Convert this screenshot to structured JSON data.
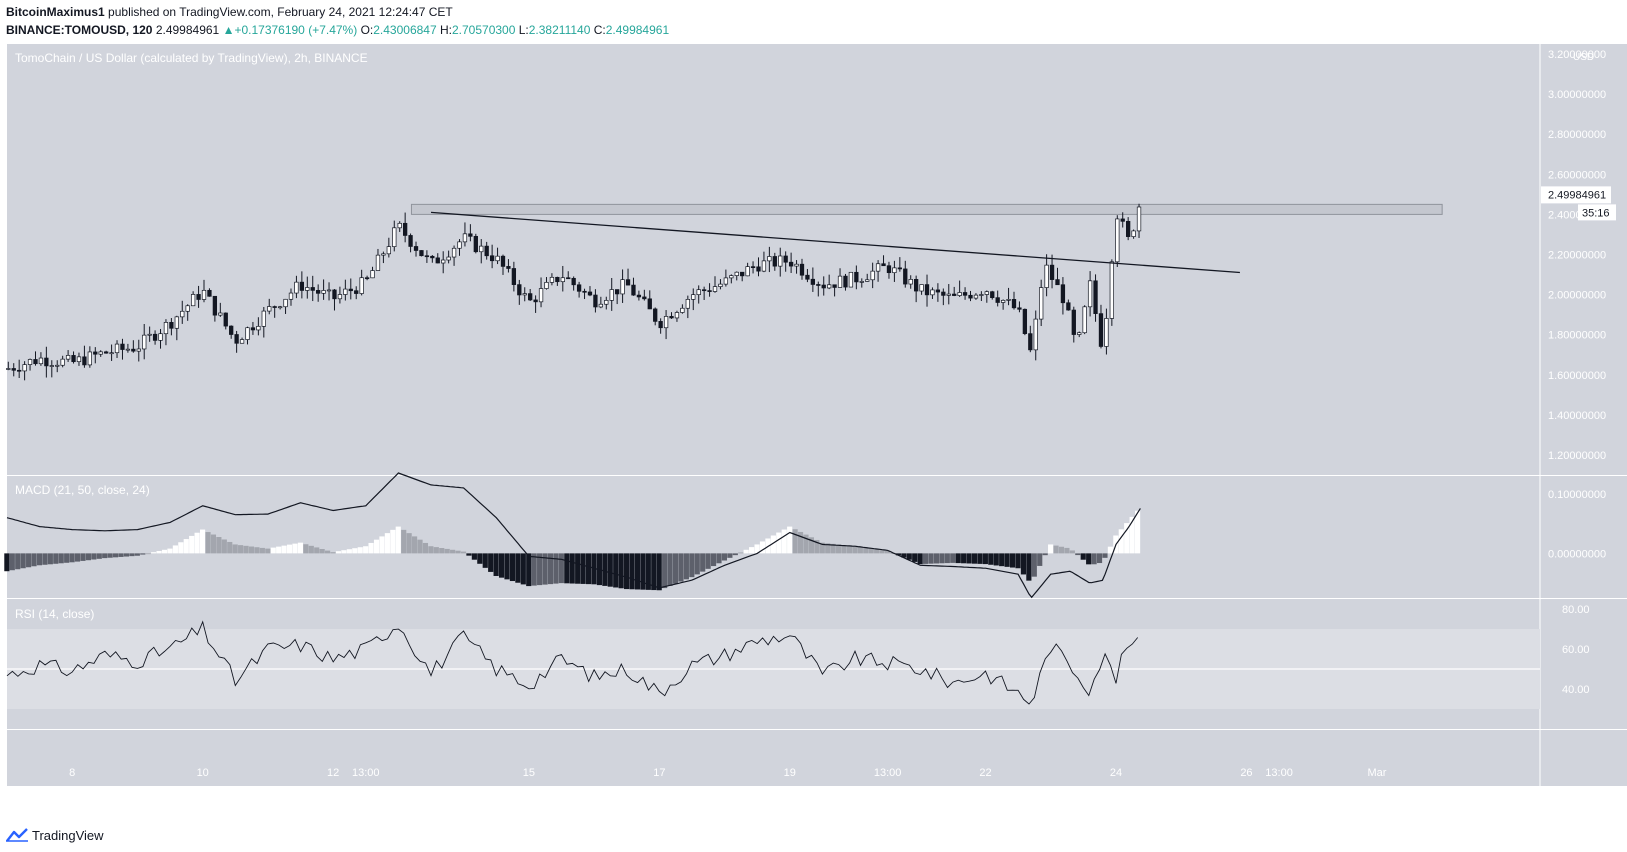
{
  "header": {
    "author": "BitcoinMaximus1",
    "published_text": "published on TradingView.com, February 24, 2021 12:24:47 CET",
    "symbol": "BINANCE:TOMOUSD, 120",
    "last": "2.49984961",
    "change": "+0.17376190 (+7.47%)",
    "open_label": "O:",
    "open": "2.43006847",
    "high_label": "H:",
    "high": "2.70570300",
    "low_label": "L:",
    "low": "2.38211140",
    "close_label": "C:",
    "close": "2.49984961"
  },
  "footer": {
    "brand": "TradingView"
  },
  "colors": {
    "pane_bg": "#d1d4dc",
    "up": "#ffffff",
    "down": "#131722",
    "accent": "#26a69a",
    "rsi_band": "#dcdee4"
  },
  "chart_data": [
    {
      "type": "candlestick",
      "title": "TomoChain / US Dollar (calculated by TradingView), 2h, BINANCE",
      "currency_label": "USD",
      "ylim": [
        1.1,
        3.25
      ],
      "yticks": [
        "3.20000000",
        "3.00000000",
        "2.80000000",
        "2.60000000",
        "2.40000000",
        "2.20000000",
        "2.00000000",
        "1.80000000",
        "1.60000000",
        "1.40000000",
        "1.20000000"
      ],
      "ytick_values": [
        3.2,
        3.0,
        2.8,
        2.6,
        2.4,
        2.2,
        2.0,
        1.8,
        1.6,
        1.4,
        1.2
      ],
      "xticks": [
        "8",
        "10",
        "12",
        "13:00",
        "15",
        "17",
        "19",
        "13:00",
        "22",
        "24",
        "26",
        "13:00",
        "Mar"
      ],
      "xtick_days": [
        8,
        10,
        12,
        12.5,
        15,
        17,
        19,
        20.5,
        22,
        24,
        26,
        26.5,
        28
      ],
      "x_range_days": [
        7,
        30.5
      ],
      "last_price_label": "2.49984961",
      "countdown_label": "35:16",
      "price_path_days": [
        7,
        7.5,
        8,
        8.5,
        9,
        9.5,
        10,
        10.5,
        11,
        11.5,
        12,
        12.5,
        13,
        13.5,
        14,
        14.5,
        15,
        15.5,
        16,
        16.5,
        17,
        17.5,
        18,
        18.5,
        19,
        19.5,
        20,
        20.5,
        21,
        21.5,
        22,
        22.5,
        22.7,
        22.9,
        23.2,
        23.4,
        23.6,
        23.8,
        24,
        24.2,
        24.4
      ],
      "price_path_close": [
        1.63,
        1.68,
        1.66,
        1.71,
        1.74,
        1.86,
        2.02,
        1.77,
        1.92,
        2.05,
        1.98,
        2.06,
        2.34,
        2.15,
        2.28,
        2.18,
        1.96,
        2.1,
        1.97,
        2.05,
        1.86,
        2.0,
        2.06,
        2.15,
        2.17,
        2.05,
        2.08,
        2.14,
        2.02,
        1.98,
        2.03,
        1.92,
        1.7,
        2.15,
        1.98,
        1.72,
        2.05,
        1.72,
        2.42,
        2.26,
        2.5
      ],
      "resistance_zone": [
        2.4,
        2.45
      ],
      "trendline": [
        {
          "day": 13.5,
          "price": 2.41
        },
        {
          "day": 25.9,
          "price": 2.11
        }
      ]
    },
    {
      "type": "macd",
      "title": "MACD (21, 50, close, 24)",
      "ylim": [
        -0.075,
        0.13
      ],
      "yticks": [
        "0.10000000",
        "0.00000000"
      ],
      "ytick_values": [
        0.1,
        0.0
      ],
      "macd_days": [
        7,
        7.5,
        8,
        8.5,
        9,
        9.5,
        10,
        10.5,
        11,
        11.5,
        12,
        12.5,
        13,
        13.5,
        14,
        14.5,
        15,
        15.5,
        16,
        16.5,
        17,
        17.5,
        18,
        18.5,
        19,
        19.5,
        20,
        20.5,
        21,
        21.5,
        22,
        22.5,
        22.7,
        23.0,
        23.3,
        23.6,
        23.8,
        24.0,
        24.2,
        24.4
      ],
      "macd_values": [
        0.06,
        0.045,
        0.04,
        0.038,
        0.04,
        0.052,
        0.08,
        0.065,
        0.066,
        0.085,
        0.072,
        0.08,
        0.135,
        0.115,
        0.11,
        0.06,
        -0.005,
        -0.01,
        -0.025,
        -0.04,
        -0.058,
        -0.045,
        -0.02,
        0.0,
        0.035,
        0.015,
        0.012,
        0.005,
        -0.02,
        -0.022,
        -0.025,
        -0.035,
        -0.075,
        -0.035,
        -0.03,
        -0.05,
        -0.045,
        0.015,
        0.045,
        0.08
      ],
      "hist_values": [
        -0.03,
        -0.02,
        -0.015,
        -0.008,
        -0.004,
        0.008,
        0.04,
        0.015,
        0.008,
        0.018,
        0.002,
        0.012,
        0.045,
        0.012,
        0.003,
        -0.038,
        -0.055,
        -0.05,
        -0.052,
        -0.06,
        -0.062,
        -0.04,
        -0.012,
        0.015,
        0.045,
        0.018,
        0.012,
        0.004,
        -0.018,
        -0.016,
        -0.018,
        -0.025,
        -0.05,
        0.015,
        0.008,
        -0.02,
        -0.015,
        0.03,
        0.055,
        0.08
      ]
    },
    {
      "type": "line",
      "title": "RSI (14, close)",
      "ylim": [
        20,
        85
      ],
      "yticks": [
        "80.00",
        "60.00",
        "40.00"
      ],
      "ytick_values": [
        80,
        60,
        40
      ],
      "band": [
        30,
        70
      ],
      "midline": 50,
      "rsi_days": [
        7,
        7.5,
        8,
        8.5,
        9,
        9.5,
        10,
        10.5,
        11,
        11.5,
        12,
        12.5,
        13,
        13.5,
        14,
        14.5,
        15,
        15.5,
        16,
        16.5,
        17,
        17.5,
        18,
        18.5,
        19,
        19.5,
        20,
        20.5,
        21,
        21.5,
        22,
        22.5,
        22.7,
        23.0,
        23.3,
        23.6,
        23.8,
        24.0,
        24.2,
        24.4
      ],
      "rsi_values": [
        47,
        52,
        49,
        57,
        54,
        60,
        70,
        44,
        60,
        62,
        55,
        60,
        73,
        48,
        66,
        50,
        42,
        55,
        46,
        50,
        38,
        52,
        57,
        64,
        67,
        47,
        55,
        53,
        50,
        43,
        48,
        38,
        33,
        62,
        52,
        40,
        57,
        46,
        64,
        61
      ]
    }
  ]
}
